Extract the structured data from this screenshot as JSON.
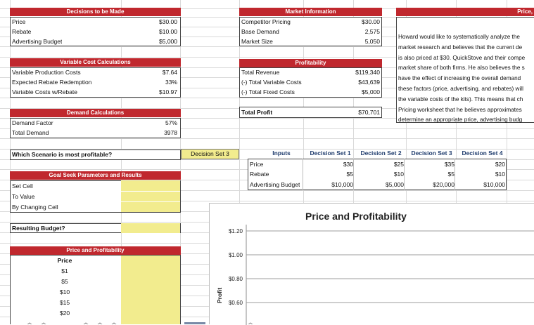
{
  "decisions": {
    "header": "Decisions to be Made",
    "rows": [
      {
        "label": "Price",
        "value": "$30.00"
      },
      {
        "label": "Rebate",
        "value": "$10.00"
      },
      {
        "label": "Advertising Budget",
        "value": "$5,000"
      }
    ]
  },
  "market": {
    "header": "Market Information",
    "rows": [
      {
        "label": "Competitor Pricing",
        "value": "$30.00"
      },
      {
        "label": "Base Demand",
        "value": "2,575"
      },
      {
        "label": "Market Size",
        "value": "5,050"
      }
    ]
  },
  "price_header": "Price,",
  "description_lines": [
    "Howard would like to systematically analyze the",
    "market research and believes that the current de",
    "is also priced at $30. QuickStove and their compe",
    "market share of both firms. He also believes the s",
    "have the effect of increasing the overall demand",
    "these factors (price, advertising, and rebates) will",
    "the variable costs of the kits). This means that ch",
    "Pricing worksheet that he believes approximates",
    "determine an appropriate price, advertising budg"
  ],
  "variable_costs": {
    "header": "Variable Cost Calculations",
    "rows": [
      {
        "label": "Variable Production Costs",
        "value": "$7.64"
      },
      {
        "label": "Expected Rebate Redemption",
        "value": "33%"
      },
      {
        "label": "Variable Costs w/Rebate",
        "value": "$10.97"
      }
    ]
  },
  "profitability": {
    "header": "Profitability",
    "rows": [
      {
        "label": "Total Revenue",
        "value": "$119,340"
      },
      {
        "label": "(-) Total Variable Costs",
        "value": "$43,639"
      },
      {
        "label": "(-) Total Fixed Costs",
        "value": "$5,000"
      }
    ],
    "total_label": "Total Profit",
    "total_value": "$70,701"
  },
  "demand": {
    "header": "Demand Calculations",
    "rows": [
      {
        "label": "Demand Factor",
        "value": "57%"
      },
      {
        "label": "Total Demand",
        "value": "3978"
      }
    ]
  },
  "scenario": {
    "question": "Which Scenario is most profitable?",
    "answer": "Decision Set 3"
  },
  "inputs_table": {
    "corner": "Inputs",
    "columns": [
      "Decision Set 1",
      "Decision Set 2",
      "Decision Set 3",
      "Decision Set 4"
    ],
    "rows": [
      {
        "label": "Price",
        "values": [
          "$30",
          "$25",
          "$35",
          "$20"
        ]
      },
      {
        "label": "Rebate",
        "values": [
          "$5",
          "$10",
          "$5",
          "$10"
        ]
      },
      {
        "label": "Advertising Budget",
        "values": [
          "$10,000",
          "$5,000",
          "$20,000",
          "$10,000"
        ]
      }
    ]
  },
  "goal_seek": {
    "header": "Goal Seek Parameters and Results",
    "labels": [
      "Set Cell",
      "To Value",
      "By Changing Cell"
    ],
    "result_label": "Resulting Budget?"
  },
  "price_profit_table": {
    "header": "Price and Profitability",
    "col_header": "Price",
    "prices": [
      "$1",
      "$5",
      "$10",
      "$15",
      "$20"
    ]
  },
  "chart_data": {
    "type": "line",
    "title": "Price and Profitability",
    "ylabel": "Profit",
    "xlabel": "",
    "yticks": [
      "$1.20",
      "$1.00",
      "$0.80",
      "$0.60"
    ],
    "ylim": [
      0.6,
      1.2
    ],
    "series": []
  },
  "colors": {
    "header_red": "#c0282e",
    "input_yellow": "#f2ec8e",
    "text_blue": "#1f3c6d"
  }
}
